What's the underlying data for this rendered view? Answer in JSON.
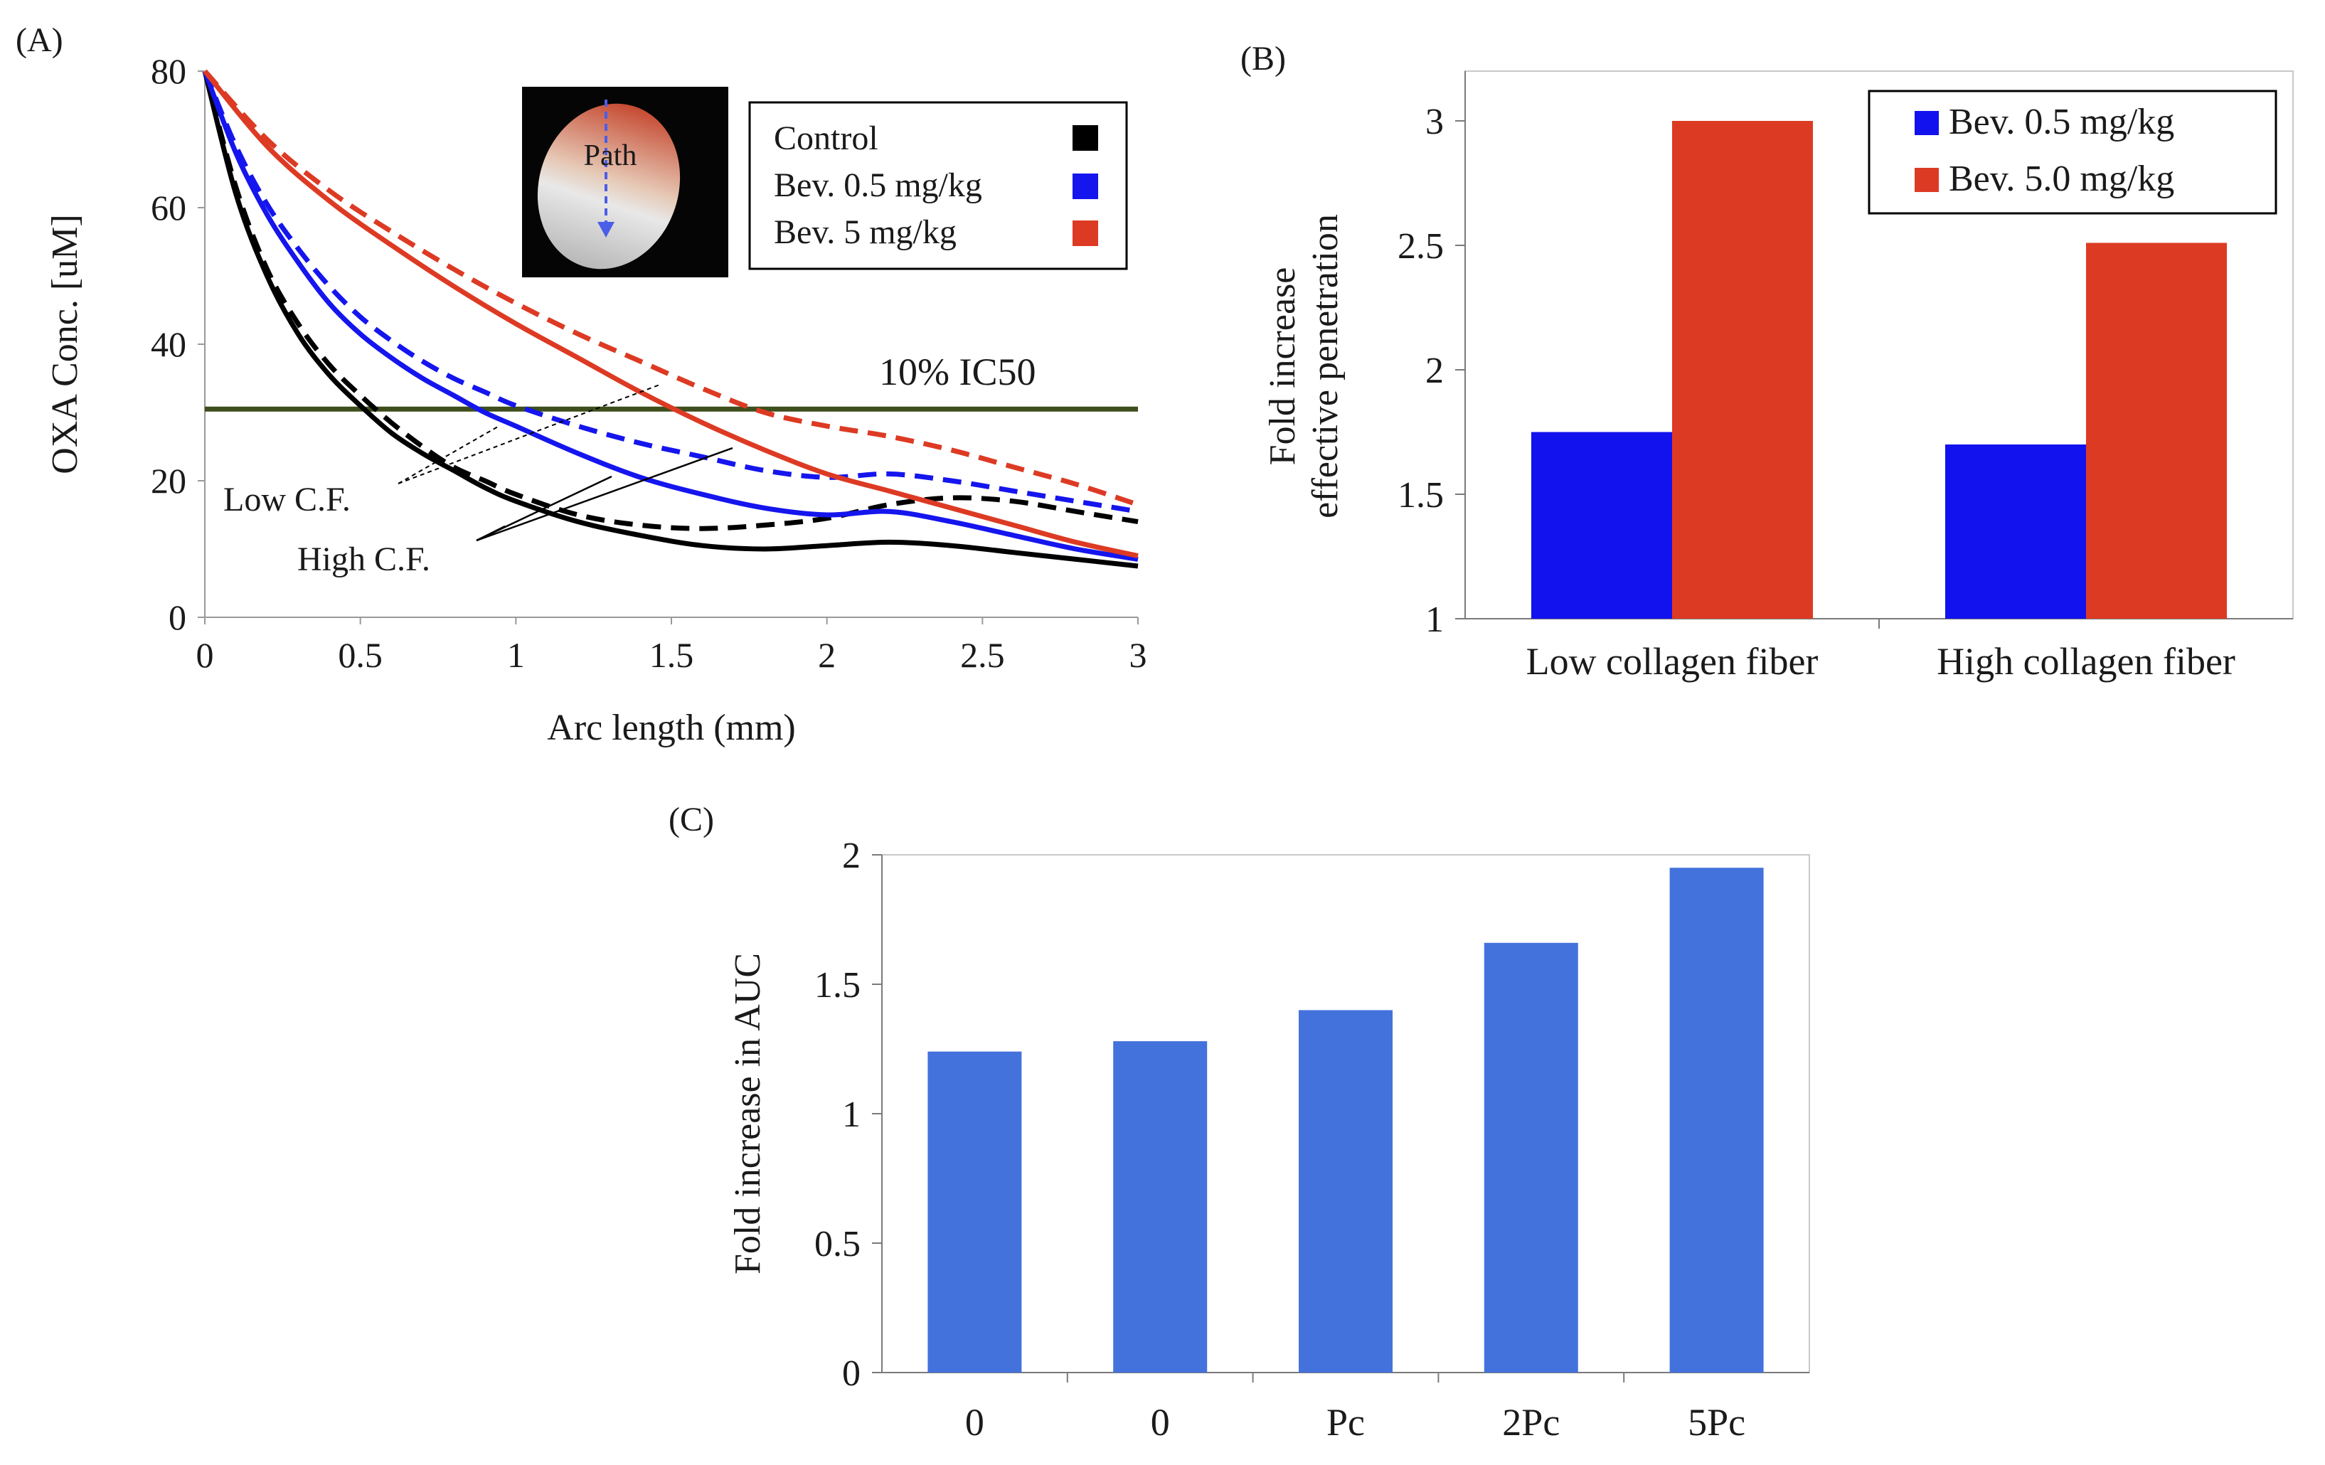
{
  "chart_data": [
    {
      "panel": "(A)",
      "type": "line",
      "xlabel": "Arc length (mm)",
      "ylabel": "OXA Conc. [uM]",
      "xlim": [
        0,
        3
      ],
      "ylim": [
        0,
        80
      ],
      "xticks": [
        "0",
        "0.5",
        "1",
        "1.5",
        "2",
        "2.5",
        "3"
      ],
      "yticks": [
        "0",
        "20",
        "40",
        "60",
        "80"
      ],
      "xtick_values": [
        0,
        0.5,
        1,
        1.5,
        2,
        2.5,
        3
      ],
      "ytick_values": [
        0,
        20,
        40,
        60,
        80
      ],
      "legend": [
        {
          "name": "Control",
          "color": "#000000"
        },
        {
          "name": "Bev. 0.5 mg/kg",
          "color": "#1515ee"
        },
        {
          "name": "Bev. 5 mg/kg",
          "color": "#dd3a24"
        }
      ],
      "threshold": {
        "label": "10% IC50",
        "value": 30.5,
        "color": "#3e4e1c"
      },
      "inset_label": "Path",
      "annotations": [
        "Low C.F.",
        "High C.F."
      ],
      "series": [
        {
          "name": "Control (High C.F.)",
          "color": "#000000",
          "dash": false,
          "points": [
            [
              0,
              80
            ],
            [
              0.1,
              62
            ],
            [
              0.2,
              50
            ],
            [
              0.3,
              41.5
            ],
            [
              0.4,
              35.5
            ],
            [
              0.5,
              31
            ],
            [
              0.6,
              27
            ],
            [
              0.7,
              24
            ],
            [
              0.8,
              21.5
            ],
            [
              0.9,
              19
            ],
            [
              1.0,
              17
            ],
            [
              1.2,
              14
            ],
            [
              1.4,
              12
            ],
            [
              1.6,
              10.5
            ],
            [
              1.8,
              10
            ],
            [
              2.0,
              10.5
            ],
            [
              2.2,
              11
            ],
            [
              2.4,
              10.5
            ],
            [
              2.6,
              9.5
            ],
            [
              2.8,
              8.5
            ],
            [
              3.0,
              7.5
            ]
          ]
        },
        {
          "name": "Control (Low C.F.)",
          "color": "#000000",
          "dash": true,
          "points": [
            [
              0,
              80
            ],
            [
              0.1,
              63
            ],
            [
              0.2,
              51
            ],
            [
              0.3,
              43
            ],
            [
              0.4,
              37
            ],
            [
              0.5,
              32.5
            ],
            [
              0.6,
              28.5
            ],
            [
              0.7,
              25
            ],
            [
              0.8,
              22
            ],
            [
              0.9,
              20
            ],
            [
              1.0,
              18
            ],
            [
              1.2,
              15
            ],
            [
              1.4,
              13.5
            ],
            [
              1.6,
              13
            ],
            [
              1.8,
              13.5
            ],
            [
              2.0,
              14.5
            ],
            [
              2.2,
              16.5
            ],
            [
              2.4,
              17.5
            ],
            [
              2.6,
              17
            ],
            [
              2.8,
              15.5
            ],
            [
              3.0,
              14
            ]
          ]
        },
        {
          "name": "Bev. 0.5 mg/kg (High C.F.)",
          "color": "#1515ee",
          "dash": false,
          "points": [
            [
              0,
              80
            ],
            [
              0.1,
              68
            ],
            [
              0.2,
              59
            ],
            [
              0.3,
              52
            ],
            [
              0.4,
              46
            ],
            [
              0.5,
              41.5
            ],
            [
              0.6,
              38
            ],
            [
              0.7,
              35
            ],
            [
              0.8,
              32.5
            ],
            [
              0.9,
              30
            ],
            [
              1.0,
              28
            ],
            [
              1.2,
              24
            ],
            [
              1.4,
              20.5
            ],
            [
              1.6,
              18
            ],
            [
              1.8,
              16
            ],
            [
              2.0,
              15
            ],
            [
              2.2,
              15.5
            ],
            [
              2.4,
              14
            ],
            [
              2.6,
              12
            ],
            [
              2.8,
              10
            ],
            [
              3.0,
              8.5
            ]
          ]
        },
        {
          "name": "Bev. 0.5 mg/kg (Low C.F.)",
          "color": "#1515ee",
          "dash": true,
          "points": [
            [
              0,
              80
            ],
            [
              0.1,
              69
            ],
            [
              0.2,
              60.5
            ],
            [
              0.3,
              54
            ],
            [
              0.4,
              48.5
            ],
            [
              0.5,
              44
            ],
            [
              0.6,
              40.5
            ],
            [
              0.7,
              37.5
            ],
            [
              0.8,
              35
            ],
            [
              0.9,
              33
            ],
            [
              1.0,
              31
            ],
            [
              1.2,
              28
            ],
            [
              1.4,
              25.5
            ],
            [
              1.6,
              23.5
            ],
            [
              1.8,
              21.5
            ],
            [
              2.0,
              20.5
            ],
            [
              2.2,
              21
            ],
            [
              2.4,
              20
            ],
            [
              2.6,
              18.5
            ],
            [
              2.8,
              17
            ],
            [
              3.0,
              15.5
            ]
          ]
        },
        {
          "name": "Bev. 5 mg/kg (High C.F.)",
          "color": "#dd3a24",
          "dash": false,
          "points": [
            [
              0,
              80
            ],
            [
              0.2,
              69
            ],
            [
              0.4,
              61
            ],
            [
              0.6,
              54.5
            ],
            [
              0.8,
              48.5
            ],
            [
              1.0,
              43
            ],
            [
              1.2,
              38
            ],
            [
              1.4,
              33
            ],
            [
              1.6,
              28.5
            ],
            [
              1.8,
              24.5
            ],
            [
              2.0,
              21
            ],
            [
              2.2,
              18.5
            ],
            [
              2.4,
              16
            ],
            [
              2.6,
              13.5
            ],
            [
              2.8,
              11
            ],
            [
              3.0,
              9
            ]
          ]
        },
        {
          "name": "Bev. 5 mg/kg (Low C.F.)",
          "color": "#dd3a24",
          "dash": true,
          "points": [
            [
              0,
              80
            ],
            [
              0.2,
              70
            ],
            [
              0.4,
              62.5
            ],
            [
              0.6,
              56.5
            ],
            [
              0.8,
              51
            ],
            [
              1.0,
              46
            ],
            [
              1.2,
              41.5
            ],
            [
              1.4,
              37.5
            ],
            [
              1.6,
              33.5
            ],
            [
              1.8,
              30
            ],
            [
              2.0,
              28
            ],
            [
              2.2,
              26.5
            ],
            [
              2.4,
              24.5
            ],
            [
              2.6,
              22
            ],
            [
              2.8,
              19.5
            ],
            [
              3.0,
              16.5
            ]
          ]
        }
      ]
    },
    {
      "panel": "(B)",
      "type": "bar",
      "ylabel_lines": [
        "Fold increase",
        "effective penetration"
      ],
      "categories": [
        "Low collagen fiber",
        "High collagen fiber"
      ],
      "ylim": [
        1,
        3.2
      ],
      "yticks": [
        "1",
        "1.5",
        "2",
        "2.5",
        "3"
      ],
      "ytick_values": [
        1,
        1.5,
        2,
        2.5,
        3
      ],
      "series": [
        {
          "name": "Bev. 0.5 mg/kg",
          "color": "#1212ee",
          "values": [
            1.75,
            1.7
          ]
        },
        {
          "name": "Bev. 5.0 mg/kg",
          "color": "#dd3a24",
          "values": [
            3.0,
            2.51
          ]
        }
      ]
    },
    {
      "panel": "(C)",
      "type": "bar",
      "ylabel": "Fold increase in AUC",
      "categories": [
        "0",
        "0",
        "Pc",
        "2Pc",
        "5Pc"
      ],
      "ylim": [
        0,
        2
      ],
      "yticks": [
        "0",
        "0.5",
        "1",
        "1.5",
        "2"
      ],
      "ytick_values": [
        0,
        0.5,
        1,
        1.5,
        2
      ],
      "series": [
        {
          "name": "AUC",
          "color": "#4472dd",
          "values": [
            1.24,
            1.28,
            1.4,
            1.66,
            1.95
          ]
        }
      ]
    }
  ]
}
